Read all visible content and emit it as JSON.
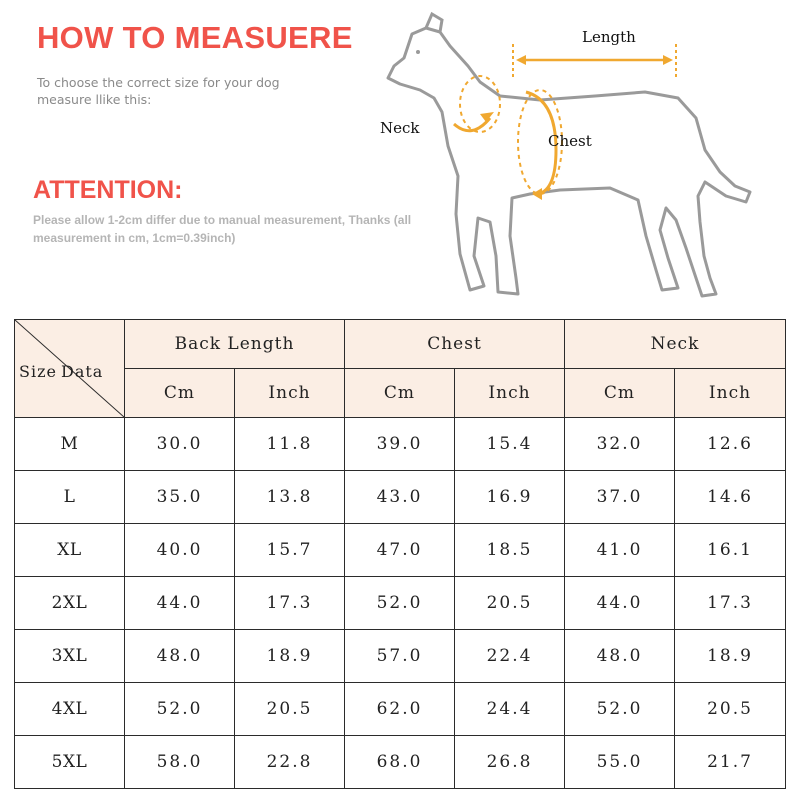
{
  "header": {
    "title": "HOW TO MEASUERE",
    "subtitle": "To choose the correct size for your dog measure llike this:"
  },
  "attention": {
    "title": "ATTENTION:",
    "text": "Please allow 1-2cm differ due to manual measurement, Thanks (all measurement in cm, 1cm=0.39inch)"
  },
  "illustration": {
    "label_length": "Length",
    "label_neck": "Neck",
    "label_chest": "Chest"
  },
  "table": {
    "corner_left": "Size",
    "corner_right": "Data",
    "groups": [
      "Back Length",
      "Chest",
      "Neck"
    ],
    "units": [
      "Cm",
      "Inch",
      "Cm",
      "Inch",
      "Cm",
      "Inch"
    ],
    "rows": [
      {
        "size": "M",
        "values": [
          "30.0",
          "11.8",
          "39.0",
          "15.4",
          "32.0",
          "12.6"
        ]
      },
      {
        "size": "L",
        "values": [
          "35.0",
          "13.8",
          "43.0",
          "16.9",
          "37.0",
          "14.6"
        ]
      },
      {
        "size": "XL",
        "values": [
          "40.0",
          "15.7",
          "47.0",
          "18.5",
          "41.0",
          "16.1"
        ]
      },
      {
        "size": "2XL",
        "values": [
          "44.0",
          "17.3",
          "52.0",
          "20.5",
          "44.0",
          "17.3"
        ]
      },
      {
        "size": "3XL",
        "values": [
          "48.0",
          "18.9",
          "57.0",
          "22.4",
          "48.0",
          "18.9"
        ]
      },
      {
        "size": "4XL",
        "values": [
          "52.0",
          "20.5",
          "62.0",
          "24.4",
          "52.0",
          "20.5"
        ]
      },
      {
        "size": "5XL",
        "values": [
          "58.0",
          "22.8",
          "68.0",
          "26.8",
          "55.0",
          "21.7"
        ]
      }
    ]
  },
  "colors": {
    "title_red": "#f0534a",
    "attention_red": "#f0534a",
    "header_fill": "#fbeee4",
    "measure_orange": "#f0a830",
    "dog_outline": "#9a9a9a"
  }
}
